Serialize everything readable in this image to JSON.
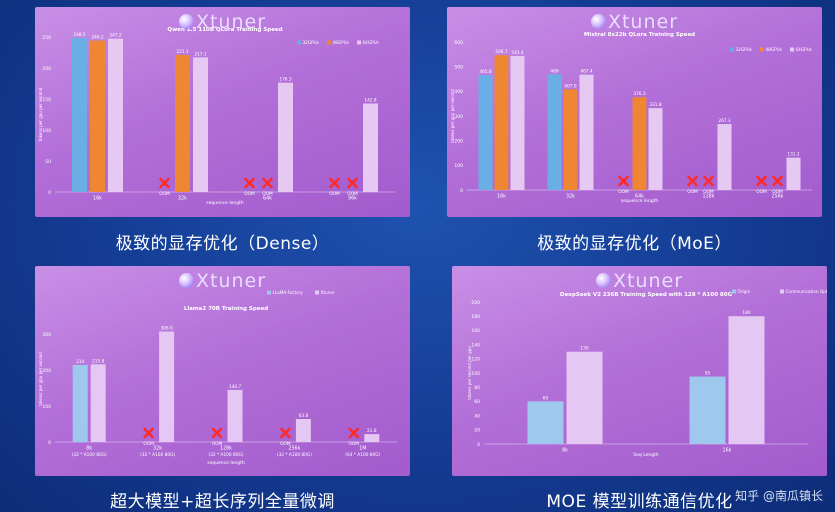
{
  "brand": "Xtuner",
  "captions": [
    "极致的显存优化（Dense）",
    "极致的显存优化（MoE）",
    "超大模型+超长序列全量微调",
    "MOE 模型训练通信优化"
  ],
  "watermark": "知乎 @南瓜镇长",
  "colors": {
    "blue": "#6aaee5",
    "orange": "#ee8634",
    "pink": "#e6c9f3",
    "lightblue": "#9ec8ee",
    "lavender": "#e4c7f2",
    "oom": "#ff2a2a"
  },
  "chart_data": [
    {
      "type": "bar",
      "title": "Qwen 1.5 110B QLora Training Speed",
      "xlabel": "sequence length",
      "ylabel": "tokens per gpu per second",
      "ylim": [
        0,
        250
      ],
      "yticks": [
        0,
        50,
        100,
        150,
        200,
        250
      ],
      "categories": [
        "16k",
        "32k",
        "64k",
        "96k"
      ],
      "series": [
        {
          "name": "32GPUs",
          "color": "blue",
          "values": [
            248.5,
            null,
            null,
            null
          ]
        },
        {
          "name": "48GPUs",
          "color": "orange",
          "values": [
            244.2,
            221.1,
            null,
            null
          ]
        },
        {
          "name": "64GPUs",
          "color": "pink",
          "values": [
            247.2,
            217.1,
            176.3,
            142.8
          ]
        }
      ],
      "bar_labels": [
        [
          "248.5",
          null,
          null,
          null
        ],
        [
          "244.2",
          "221.1",
          null,
          null
        ],
        [
          "247.2",
          "217.1",
          "176.3",
          "142.8"
        ]
      ],
      "oom_label": "OOM",
      "legend": "top-right"
    },
    {
      "type": "bar",
      "title": "Mixtral 8x22b QLora Training Speed",
      "xlabel": "sequence length",
      "ylabel": "tokens per gpu per second",
      "ylim": [
        0,
        600
      ],
      "yticks": [
        0,
        100,
        200,
        300,
        400,
        500,
        600
      ],
      "categories": [
        "16k",
        "32k",
        "64k",
        "128k",
        "256k"
      ],
      "series": [
        {
          "name": "32GPUs",
          "color": "blue",
          "values": [
            465.8,
            469,
            null,
            null,
            null
          ]
        },
        {
          "name": "48GPUs",
          "color": "orange",
          "values": [
            546.7,
            407.9,
            376.3,
            null,
            null
          ]
        },
        {
          "name": "64GPUs",
          "color": "pink",
          "values": [
            543.4,
            467.4,
            331.8,
            267.3,
            131.2
          ]
        }
      ],
      "bar_labels": [
        [
          "465.8",
          "469",
          null,
          null,
          null
        ],
        [
          "546.7",
          "407.9",
          "376.3",
          null,
          null
        ],
        [
          "543.4",
          "467.4",
          "331.8",
          "267.3",
          "131.2"
        ]
      ],
      "oom_label": "OOM",
      "legend": "top-right"
    },
    {
      "type": "bar",
      "title": "Llama2 70B Training Speed",
      "xlabel": "sequence length",
      "ylabel": "tokens per gpu per second",
      "ylim": [
        0,
        350
      ],
      "yticks": [
        0,
        100,
        200,
        300
      ],
      "categories": [
        "8k",
        "32k",
        "128k",
        "256k",
        "1M"
      ],
      "category_sub": [
        "(32 * A100 80G)",
        "(32 * A100 80G)",
        "(32 * A100 80G)",
        "(32 * A100 80G)",
        "(64 * A100 80G)"
      ],
      "series": [
        {
          "name": "LLaMA-Factory",
          "color": "lightblue",
          "values": [
            214,
            null,
            null,
            null,
            null
          ]
        },
        {
          "name": "Xtuner",
          "color": "lavender",
          "values": [
            215.8,
            306.9,
            144.7,
            63.8,
            21.8
          ]
        }
      ],
      "bar_labels": [
        [
          "214",
          null,
          null,
          null,
          null
        ],
        [
          "215.8",
          "306.9",
          "144.7",
          "63.8",
          "21.8"
        ]
      ],
      "oom_label": "OOM",
      "legend": "top-center"
    },
    {
      "type": "bar",
      "title": "DeepSeek V2 236B Training Speed with 128 * A100 80G",
      "xlabel": "Seq Length",
      "ylabel": "tokens per second per gpu",
      "ylim": [
        0,
        200
      ],
      "yticks": [
        0,
        20,
        40,
        60,
        80,
        100,
        120,
        140,
        160,
        180,
        200
      ],
      "categories": [
        "8k",
        "16k"
      ],
      "series": [
        {
          "name": "Origin",
          "color": "lightblue",
          "values": [
            60,
            95
          ]
        },
        {
          "name": "Communication Optim",
          "color": "lavender",
          "values": [
            130,
            180
          ]
        }
      ],
      "bar_labels": [
        [
          "60",
          "95"
        ],
        [
          "130",
          "180"
        ]
      ],
      "legend": "top-center"
    }
  ]
}
